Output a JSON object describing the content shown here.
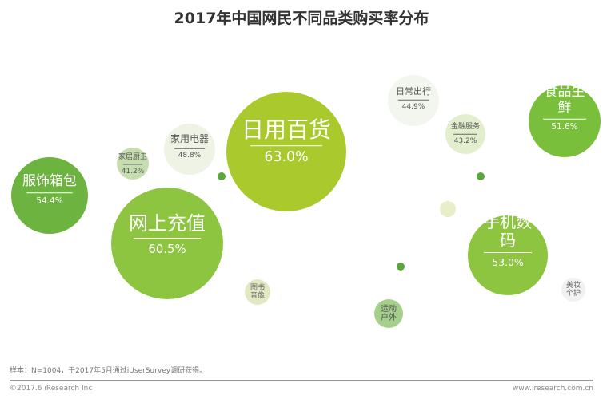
{
  "chart_data": {
    "type": "bubble",
    "title": "2017年中国网民不同品类购买率分布",
    "unit": "%",
    "points": [
      {
        "label": "日用百货",
        "value": 63.0,
        "value_label": "63.0%",
        "color": "#a9c92c"
      },
      {
        "label": "网上充值",
        "value": 60.5,
        "value_label": "60.5%",
        "color": "#8dc540"
      },
      {
        "label": "服饰箱包",
        "value": 54.4,
        "value_label": "54.4%",
        "color": "#6cb33f"
      },
      {
        "label": "手机数码",
        "value": 53.0,
        "value_label": "53.0%",
        "color": "#8dc540"
      },
      {
        "label": "食品生鲜",
        "value": 51.6,
        "value_label": "51.6%",
        "color": "#7abf3b"
      },
      {
        "label": "家用电器",
        "value": 48.8,
        "value_label": "48.8%",
        "color": "#eef3e6"
      },
      {
        "label": "日常出行",
        "value": 44.9,
        "value_label": "44.9%",
        "color": "#f3f6ee"
      },
      {
        "label": "金融服务",
        "value": 43.2,
        "value_label": "43.2%",
        "color": "#e3eecf"
      },
      {
        "label": "家居厨卫",
        "value": 41.2,
        "value_label": "41.2%",
        "color": "#c6deaf"
      },
      {
        "label": "图书音像",
        "value": null,
        "value_label": "",
        "color": "#e2e9c2"
      },
      {
        "label": "运动户外",
        "value": null,
        "value_label": "",
        "color": "#a6cf8c"
      },
      {
        "label": "美妆个护",
        "value": null,
        "value_label": "",
        "color": "#f1f1f1"
      }
    ]
  },
  "footer": {
    "note": "样本：N=1004，于2017年5月通过iUserSurvey调研获得。",
    "copyright": "©2017.6 iResearch Inc",
    "site": "www.iresearch.com.cn"
  }
}
